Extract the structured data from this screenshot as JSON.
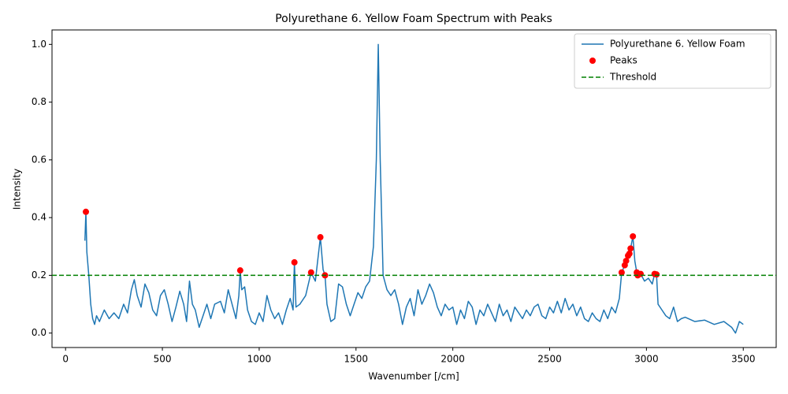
{
  "chart_data": {
    "type": "line",
    "title": "Polyurethane 6. Yellow Foam Spectrum with Peaks",
    "x_label": "Wavenumber [/cm]",
    "y_label": "Intensity",
    "xlim": [
      -70,
      3670
    ],
    "ylim": [
      -0.05,
      1.05
    ],
    "xticks": [
      0,
      500,
      1000,
      1500,
      2000,
      2500,
      3000,
      3500
    ],
    "yticks": [
      {
        "value": 0,
        "label": "0.0"
      },
      0.2,
      0.4,
      0.6,
      0.8,
      {
        "value": 1,
        "label": "1.0"
      }
    ],
    "legend": "upper right",
    "series": [
      {
        "name": "Polyurethane 6. Yellow Foam",
        "type": "line",
        "color": "#1f77b4",
        "x": [
          100,
          105,
          110,
          120,
          130,
          140,
          150,
          160,
          175,
          200,
          225,
          250,
          275,
          300,
          320,
          340,
          355,
          370,
          390,
          410,
          430,
          450,
          470,
          490,
          510,
          530,
          550,
          570,
          590,
          610,
          625,
          640,
          655,
          670,
          690,
          710,
          730,
          750,
          770,
          800,
          820,
          840,
          860,
          880,
          895,
          902,
          910,
          925,
          940,
          960,
          980,
          1000,
          1020,
          1040,
          1060,
          1080,
          1100,
          1120,
          1140,
          1160,
          1175,
          1182,
          1190,
          1210,
          1240,
          1268,
          1290,
          1316,
          1330,
          1340,
          1350,
          1370,
          1390,
          1410,
          1430,
          1450,
          1470,
          1490,
          1510,
          1530,
          1550,
          1570,
          1590,
          1605,
          1615,
          1625,
          1640,
          1660,
          1680,
          1700,
          1720,
          1740,
          1760,
          1780,
          1800,
          1820,
          1840,
          1860,
          1880,
          1900,
          1920,
          1940,
          1960,
          1980,
          2000,
          2020,
          2040,
          2060,
          2080,
          2100,
          2120,
          2140,
          2160,
          2180,
          2200,
          2220,
          2240,
          2260,
          2280,
          2300,
          2320,
          2340,
          2360,
          2380,
          2400,
          2420,
          2440,
          2460,
          2480,
          2500,
          2520,
          2540,
          2560,
          2580,
          2600,
          2620,
          2640,
          2660,
          2680,
          2700,
          2720,
          2740,
          2760,
          2780,
          2800,
          2820,
          2840,
          2860,
          2872,
          2888,
          2895,
          2905,
          2912,
          2918,
          2930,
          2940,
          2950,
          2955,
          2970,
          2990,
          3010,
          3030,
          3042,
          3052,
          3060,
          3080,
          3100,
          3120,
          3140,
          3160,
          3180,
          3200,
          3250,
          3300,
          3350,
          3400,
          3440,
          3460,
          3480,
          3500
        ],
        "values": [
          0.32,
          0.42,
          0.28,
          0.2,
          0.1,
          0.05,
          0.03,
          0.06,
          0.04,
          0.08,
          0.05,
          0.07,
          0.05,
          0.1,
          0.07,
          0.15,
          0.185,
          0.13,
          0.09,
          0.17,
          0.14,
          0.08,
          0.06,
          0.13,
          0.15,
          0.1,
          0.04,
          0.09,
          0.145,
          0.1,
          0.04,
          0.18,
          0.1,
          0.08,
          0.02,
          0.06,
          0.1,
          0.05,
          0.1,
          0.11,
          0.07,
          0.15,
          0.1,
          0.05,
          0.13,
          0.217,
          0.15,
          0.16,
          0.08,
          0.04,
          0.03,
          0.07,
          0.04,
          0.13,
          0.08,
          0.05,
          0.07,
          0.03,
          0.08,
          0.12,
          0.08,
          0.245,
          0.09,
          0.1,
          0.13,
          0.21,
          0.18,
          0.332,
          0.22,
          0.2,
          0.1,
          0.04,
          0.05,
          0.17,
          0.16,
          0.1,
          0.06,
          0.1,
          0.14,
          0.12,
          0.16,
          0.18,
          0.3,
          0.6,
          1.0,
          0.6,
          0.2,
          0.15,
          0.13,
          0.15,
          0.1,
          0.03,
          0.09,
          0.12,
          0.06,
          0.15,
          0.1,
          0.13,
          0.17,
          0.14,
          0.09,
          0.06,
          0.1,
          0.08,
          0.09,
          0.03,
          0.08,
          0.05,
          0.11,
          0.09,
          0.03,
          0.08,
          0.06,
          0.1,
          0.07,
          0.04,
          0.1,
          0.06,
          0.08,
          0.04,
          0.09,
          0.07,
          0.05,
          0.08,
          0.06,
          0.09,
          0.1,
          0.06,
          0.05,
          0.09,
          0.07,
          0.11,
          0.07,
          0.12,
          0.08,
          0.1,
          0.06,
          0.09,
          0.05,
          0.04,
          0.07,
          0.05,
          0.04,
          0.08,
          0.05,
          0.09,
          0.07,
          0.12,
          0.21,
          0.235,
          0.25,
          0.268,
          0.275,
          0.293,
          0.335,
          0.25,
          0.21,
          0.2,
          0.205,
          0.18,
          0.19,
          0.17,
          0.205,
          0.203,
          0.1,
          0.08,
          0.06,
          0.05,
          0.09,
          0.04,
          0.05,
          0.055,
          0.04,
          0.045,
          0.03,
          0.04,
          0.02,
          0.0,
          0.04,
          0.03
        ]
      },
      {
        "name": "Peaks",
        "type": "scatter",
        "color": "red",
        "x": [
          105,
          902,
          1182,
          1268,
          1316,
          1340,
          2872,
          2888,
          2895,
          2905,
          2912,
          2918,
          2930,
          2950,
          2955,
          2970,
          3042,
          3052
        ],
        "values": [
          0.42,
          0.217,
          0.245,
          0.21,
          0.332,
          0.2,
          0.21,
          0.235,
          0.25,
          0.268,
          0.275,
          0.293,
          0.335,
          0.21,
          0.2,
          0.205,
          0.205,
          0.203
        ]
      }
    ],
    "hlines": [
      {
        "name": "Threshold",
        "value": 0.2,
        "color": "green",
        "style": "dashed"
      }
    ]
  }
}
